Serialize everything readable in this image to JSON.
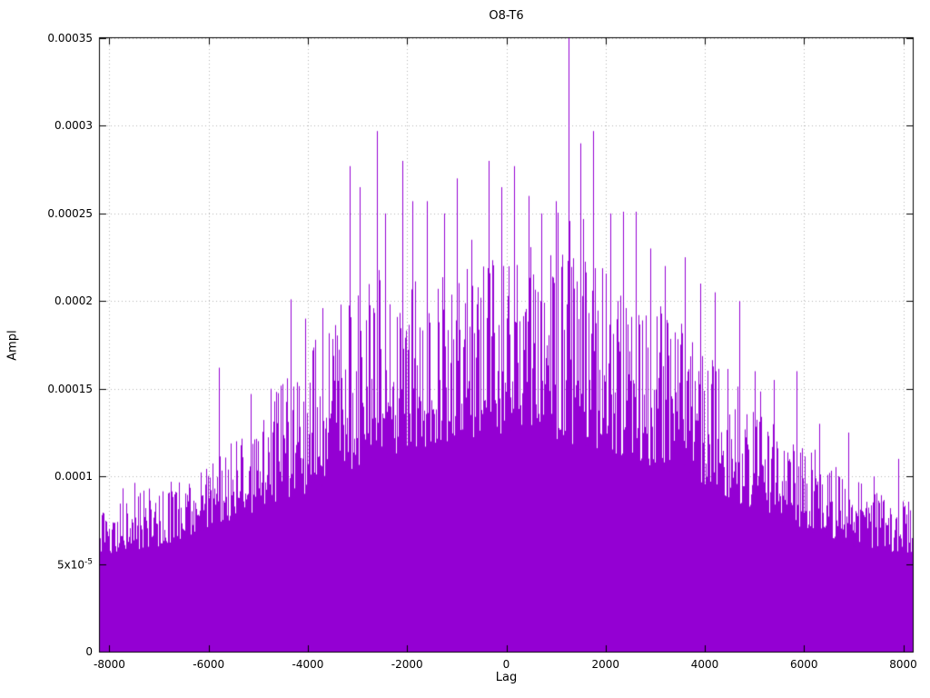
{
  "chart_data": {
    "type": "bar",
    "style": "impulses (dense vertical spikes from zero baseline)",
    "title": "O8-T6",
    "xlabel": "Lag",
    "ylabel": "Ampl",
    "xlim": [
      -8192,
      8192
    ],
    "ylim": [
      0,
      0.00035
    ],
    "grid": "dotted gray at major ticks",
    "legend": "none",
    "color": "#9400d3",
    "x_ticks": [
      -8000,
      -6000,
      -4000,
      -2000,
      0,
      2000,
      4000,
      6000,
      8000
    ],
    "y_ticks": [
      {
        "v": 0,
        "base": "0",
        "sup": ""
      },
      {
        "v": 5e-05,
        "base": "5x10",
        "sup": "-5"
      },
      {
        "v": 0.0001,
        "base": "0.0001",
        "sup": ""
      },
      {
        "v": 0.00015,
        "base": "0.00015",
        "sup": ""
      },
      {
        "v": 0.0002,
        "base": "0.0002",
        "sup": ""
      },
      {
        "v": 0.00025,
        "base": "0.00025",
        "sup": ""
      },
      {
        "v": 0.0003,
        "base": "0.0003",
        "sup": ""
      },
      {
        "v": 0.00035,
        "base": "0.00035",
        "sup": ""
      }
    ],
    "envelope_peak": [
      [
        -8192,
        8e-05
      ],
      [
        -7500,
        9e-05
      ],
      [
        -7000,
        0.0001
      ],
      [
        -6500,
        0.0001
      ],
      [
        -6000,
        0.00011
      ],
      [
        -5500,
        0.00012
      ],
      [
        -5000,
        0.00013
      ],
      [
        -4500,
        0.00016
      ],
      [
        -4000,
        0.00017
      ],
      [
        -3500,
        0.00019
      ],
      [
        -3000,
        0.00021
      ],
      [
        -2500,
        0.00022
      ],
      [
        -2000,
        0.00022
      ],
      [
        -1500,
        0.00021
      ],
      [
        -1000,
        0.00022
      ],
      [
        -500,
        0.00022
      ],
      [
        0,
        0.00023
      ],
      [
        500,
        0.00022
      ],
      [
        1000,
        0.00023
      ],
      [
        1500,
        0.00023
      ],
      [
        2000,
        0.00022
      ],
      [
        2500,
        0.00021
      ],
      [
        3000,
        0.0002
      ],
      [
        3500,
        0.00019
      ],
      [
        4000,
        0.00018
      ],
      [
        4500,
        0.00016
      ],
      [
        5000,
        0.00014
      ],
      [
        5500,
        0.00013
      ],
      [
        6000,
        0.00012
      ],
      [
        6500,
        0.00011
      ],
      [
        7000,
        0.0001
      ],
      [
        7500,
        9e-05
      ],
      [
        8192,
        8.5e-05
      ]
    ],
    "envelope_body": [
      [
        -8192,
        5.5e-05
      ],
      [
        -7000,
        6e-05
      ],
      [
        -6000,
        7e-05
      ],
      [
        -5000,
        8e-05
      ],
      [
        -4000,
        9e-05
      ],
      [
        -3000,
        0.000105
      ],
      [
        -2000,
        0.000115
      ],
      [
        -1000,
        0.00012
      ],
      [
        0,
        0.000125
      ],
      [
        1000,
        0.00012
      ],
      [
        2000,
        0.000115
      ],
      [
        3000,
        0.000105
      ],
      [
        4000,
        9.5e-05
      ],
      [
        5000,
        8e-05
      ],
      [
        6000,
        7e-05
      ],
      [
        7000,
        6e-05
      ],
      [
        8192,
        5.5e-05
      ]
    ],
    "peaks": [
      [
        -5800,
        0.000162
      ],
      [
        -5150,
        0.000147
      ],
      [
        -4750,
        0.00015
      ],
      [
        -4350,
        0.000201
      ],
      [
        -4050,
        0.00019
      ],
      [
        -3700,
        0.000196
      ],
      [
        -3350,
        0.000198
      ],
      [
        -3150,
        0.000277
      ],
      [
        -2950,
        0.000265
      ],
      [
        -2600,
        0.000297
      ],
      [
        -2450,
        0.00025
      ],
      [
        -2100,
        0.00028
      ],
      [
        -1900,
        0.000257
      ],
      [
        -1600,
        0.000257
      ],
      [
        -1250,
        0.00025
      ],
      [
        -1000,
        0.00027
      ],
      [
        -700,
        0.000235
      ],
      [
        -350,
        0.00028
      ],
      [
        -100,
        0.000265
      ],
      [
        150,
        0.000277
      ],
      [
        450,
        0.00026
      ],
      [
        700,
        0.00025
      ],
      [
        1000,
        0.000257
      ],
      [
        1250,
        0.00035
      ],
      [
        1500,
        0.00029
      ],
      [
        1750,
        0.000297
      ],
      [
        2100,
        0.00025
      ],
      [
        2350,
        0.000251
      ],
      [
        2600,
        0.000251
      ],
      [
        2900,
        0.00023
      ],
      [
        3200,
        0.00022
      ],
      [
        3600,
        0.000225
      ],
      [
        3900,
        0.00021
      ],
      [
        4200,
        0.000205
      ],
      [
        4700,
        0.0002
      ],
      [
        5000,
        0.00016
      ],
      [
        5400,
        0.000155
      ],
      [
        5850,
        0.00016
      ],
      [
        6300,
        0.00013
      ],
      [
        6900,
        0.000125
      ],
      [
        7400,
        0.0001
      ],
      [
        7900,
        0.00011
      ]
    ]
  }
}
